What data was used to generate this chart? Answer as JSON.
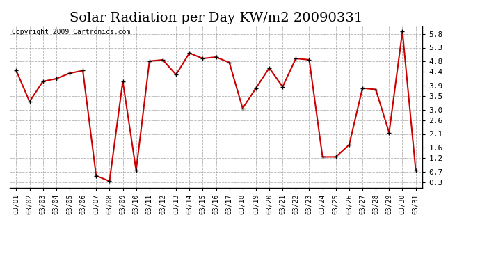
{
  "title": "Solar Radiation per Day KW/m2 20090331",
  "copyright": "Copyright 2009 Cartronics.com",
  "dates": [
    "03/01",
    "03/02",
    "03/03",
    "03/04",
    "03/05",
    "03/06",
    "03/07",
    "03/08",
    "03/09",
    "03/10",
    "03/11",
    "03/12",
    "03/13",
    "03/14",
    "03/15",
    "03/16",
    "03/17",
    "03/18",
    "03/19",
    "03/20",
    "03/21",
    "03/22",
    "03/23",
    "03/24",
    "03/25",
    "03/26",
    "03/27",
    "03/28",
    "03/29",
    "03/30",
    "03/31"
  ],
  "values": [
    4.45,
    3.3,
    4.05,
    4.15,
    4.35,
    4.45,
    0.55,
    0.35,
    4.05,
    0.75,
    4.8,
    4.85,
    4.3,
    5.1,
    4.9,
    4.95,
    4.75,
    3.05,
    3.8,
    4.55,
    3.85,
    4.9,
    4.85,
    1.25,
    1.25,
    1.7,
    3.8,
    3.75,
    2.15,
    5.9,
    0.75
  ],
  "line_color": "#cc0000",
  "marker_color": "#000000",
  "background_color": "#ffffff",
  "plot_bg_color": "#ffffff",
  "grid_color": "#aaaaaa",
  "ylim": [
    0.1,
    6.1
  ],
  "yticks": [
    0.3,
    0.7,
    1.2,
    1.6,
    2.1,
    2.6,
    3.0,
    3.5,
    3.9,
    4.4,
    4.8,
    5.3,
    5.8
  ],
  "title_fontsize": 14,
  "copyright_fontsize": 7,
  "tick_fontsize": 7,
  "ytick_fontsize": 8
}
